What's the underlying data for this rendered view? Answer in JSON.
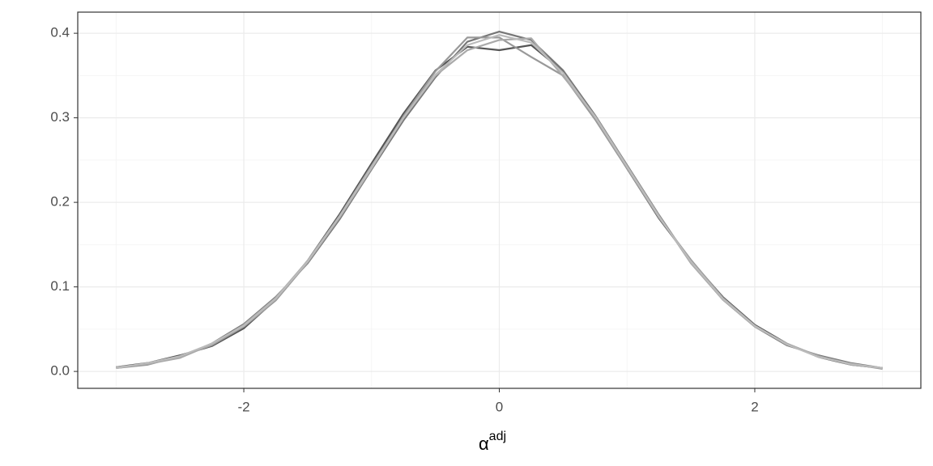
{
  "chart_data": {
    "type": "line",
    "x_label": "α",
    "x_label_sup": "adj",
    "x": [
      -3,
      -2.75,
      -2.5,
      -2.25,
      -2,
      -1.75,
      -1.5,
      -1.25,
      -1,
      -0.75,
      -0.5,
      -0.25,
      0,
      0.25,
      0.5,
      0.75,
      1,
      1.25,
      1.5,
      1.75,
      2,
      2.25,
      2.5,
      2.75,
      3
    ],
    "series": [
      {
        "color": "#555555",
        "values": [
          0.005,
          0.01,
          0.019,
          0.03,
          0.051,
          0.085,
          0.131,
          0.186,
          0.246,
          0.305,
          0.356,
          0.384,
          0.38,
          0.386,
          0.355,
          0.3,
          0.24,
          0.181,
          0.131,
          0.088,
          0.055,
          0.033,
          0.017,
          0.008,
          0.004
        ]
      },
      {
        "color": "#777777",
        "values": [
          0.004,
          0.009,
          0.017,
          0.033,
          0.056,
          0.088,
          0.128,
          0.18,
          0.239,
          0.297,
          0.348,
          0.39,
          0.402,
          0.392,
          0.356,
          0.303,
          0.244,
          0.185,
          0.129,
          0.085,
          0.053,
          0.031,
          0.019,
          0.01,
          0.004
        ]
      },
      {
        "color": "#999999",
        "values": [
          0.004,
          0.008,
          0.018,
          0.031,
          0.053,
          0.084,
          0.129,
          0.182,
          0.24,
          0.302,
          0.355,
          0.395,
          0.395,
          0.372,
          0.35,
          0.298,
          0.24,
          0.182,
          0.132,
          0.087,
          0.054,
          0.032,
          0.018,
          0.009,
          0.003
        ]
      },
      {
        "color": "#aaaaaa",
        "values": [
          0.005,
          0.009,
          0.016,
          0.032,
          0.055,
          0.087,
          0.131,
          0.184,
          0.243,
          0.3,
          0.35,
          0.38,
          0.392,
          0.394,
          0.349,
          0.302,
          0.243,
          0.184,
          0.128,
          0.085,
          0.053,
          0.033,
          0.018,
          0.008,
          0.004
        ]
      },
      {
        "color": "#bbbbbb",
        "values": [
          0.004,
          0.01,
          0.018,
          0.033,
          0.054,
          0.086,
          0.13,
          0.183,
          0.241,
          0.3,
          0.351,
          0.386,
          0.398,
          0.389,
          0.353,
          0.301,
          0.242,
          0.183,
          0.13,
          0.086,
          0.054,
          0.032,
          0.017,
          0.009,
          0.004
        ]
      }
    ],
    "xlim": [
      -3.3,
      3.3
    ],
    "xticks": [
      -2,
      0,
      2
    ],
    "ylim": [
      -0.02,
      0.425
    ],
    "yticks": [
      {
        "value": 0,
        "label": "0.0"
      },
      0.1,
      0.2,
      0.3,
      0.4
    ],
    "grid": true
  }
}
